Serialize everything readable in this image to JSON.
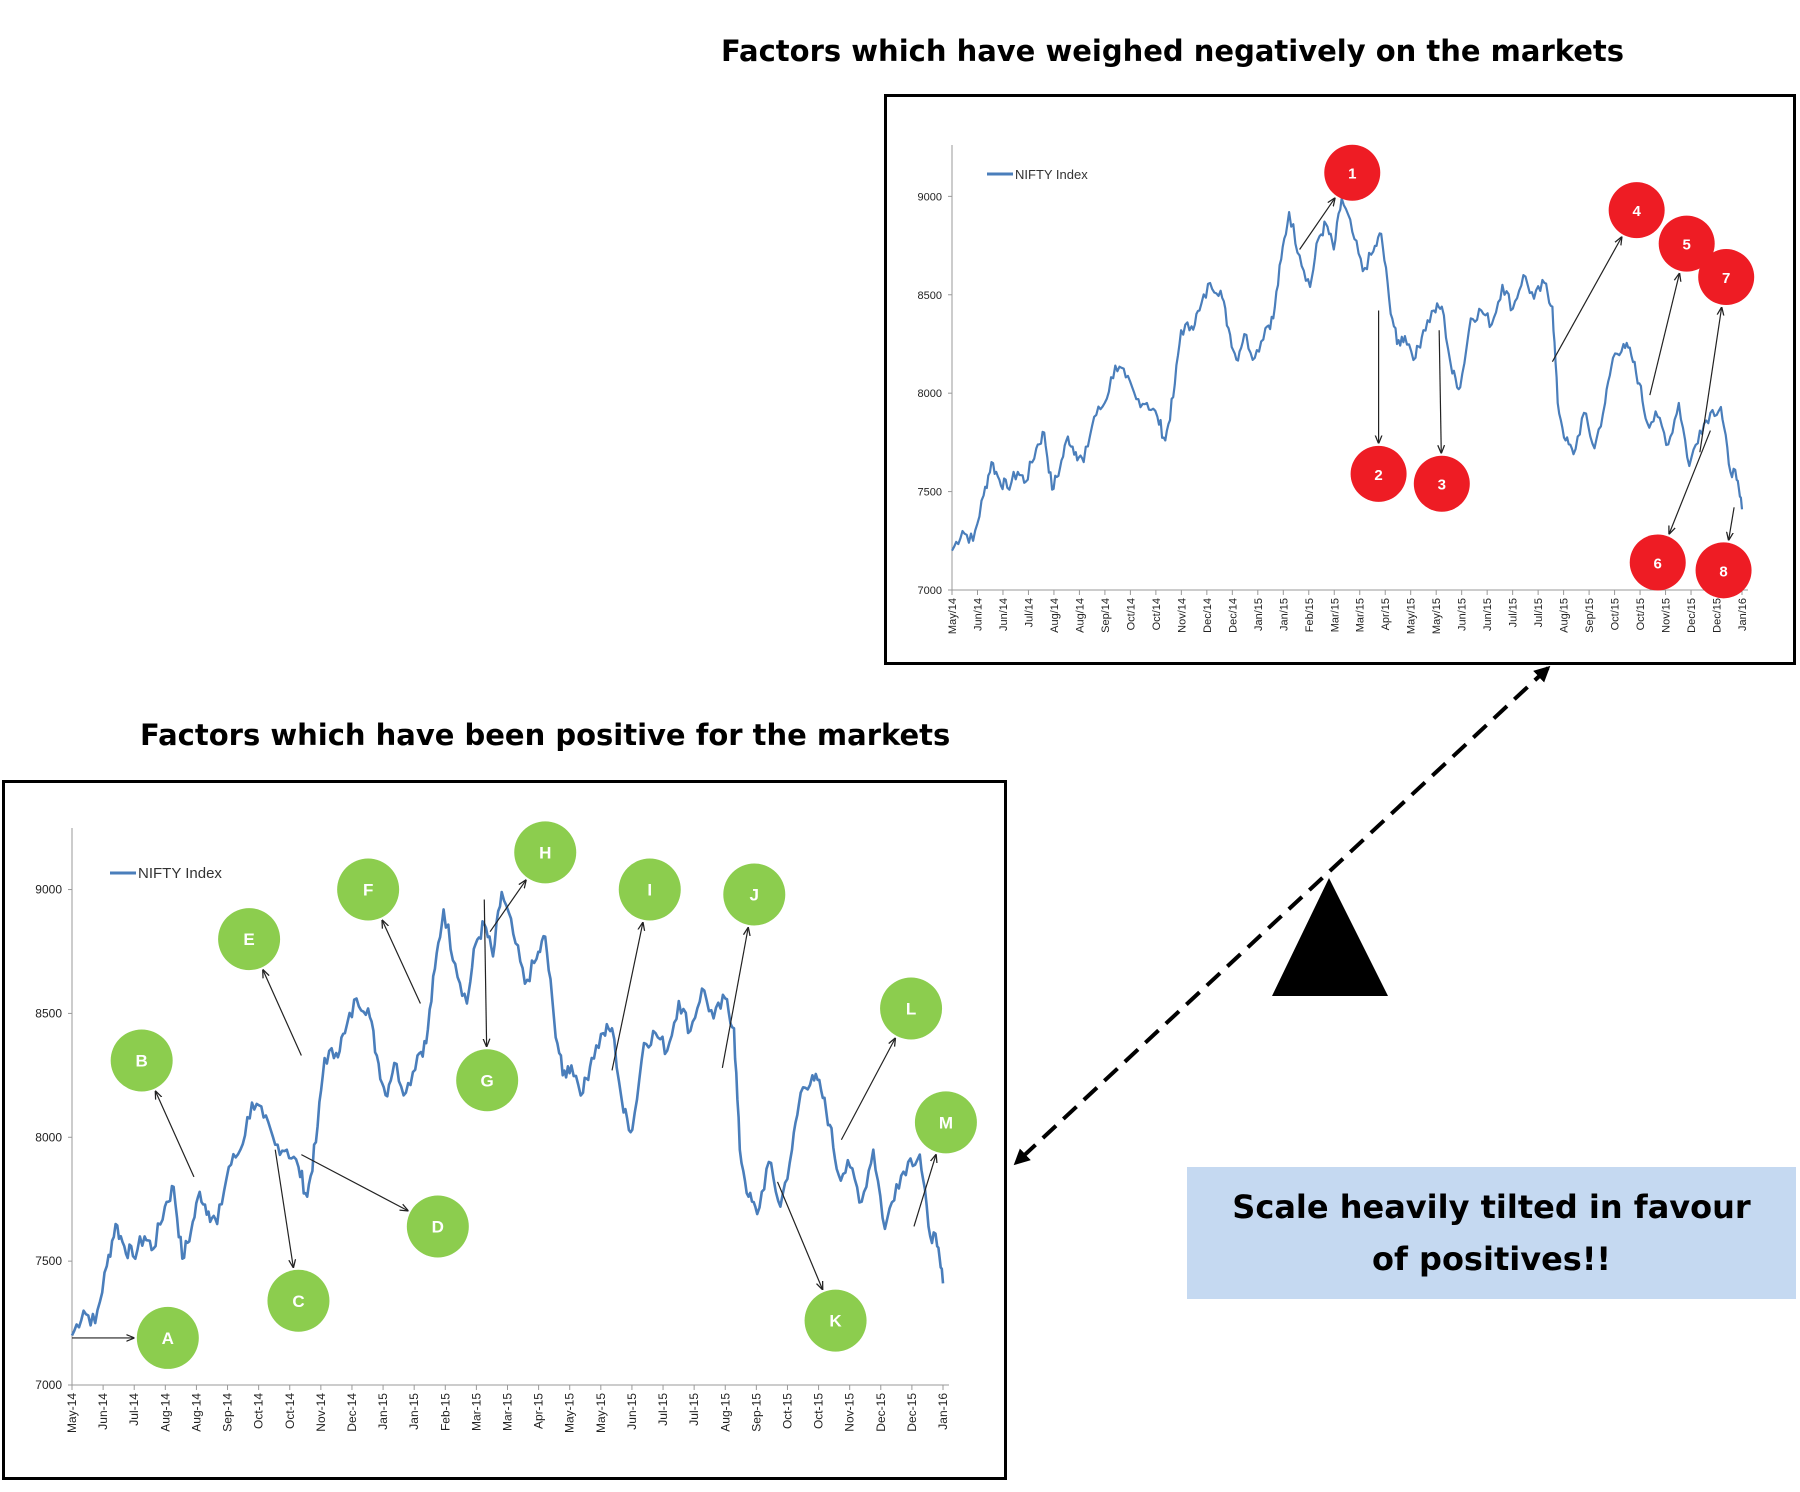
{
  "titles": {
    "negative": "Factors which have weighed negatively on the markets",
    "positive": "Factors which have been positive for the markets"
  },
  "callout": "Scale heavily tilted in favour of positives!!",
  "colors": {
    "line": "#4a7ebb",
    "negative_marker": "#ee1c24",
    "positive_marker": "#8ccd4e",
    "callout_bg": "#c5d9f1",
    "fulcrum": "#000000"
  },
  "chart_data": [
    {
      "type": "line",
      "title": "Factors which have weighed negatively on the markets",
      "legend": "NIFTY Index",
      "legend_position": "top-left",
      "grid": false,
      "ylim": [
        7000,
        9200
      ],
      "yticks": [
        7000,
        7500,
        8000,
        8500,
        9000
      ],
      "xlim": [
        0,
        30
      ],
      "xtick_labels": [
        "May/14",
        "Jun/14",
        "Jun/14",
        "Jul/14",
        "Aug/14",
        "Aug/14",
        "Sep/14",
        "Oct/14",
        "Oct/14",
        "Nov/14",
        "Dec/14",
        "Dec/14",
        "Jan/15",
        "Jan/15",
        "Feb/15",
        "Mar/15",
        "Mar/15",
        "Apr/15",
        "May/15",
        "May/15",
        "Jun/15",
        "Jun/15",
        "Jul/15",
        "Jul/15",
        "Aug/15",
        "Sep/15",
        "Oct/15",
        "Oct/15",
        "Nov/15",
        "Dec/15",
        "Dec/15",
        "Jan/16"
      ],
      "markers": [
        {
          "label": "1",
          "x": 15.2,
          "y": 9120,
          "arrow_from": [
            13.2,
            8730
          ]
        },
        {
          "label": "2",
          "x": 16.2,
          "y": 7590,
          "arrow_from": [
            16.2,
            8420
          ]
        },
        {
          "label": "3",
          "x": 18.6,
          "y": 7540,
          "arrow_from": [
            18.5,
            8320
          ]
        },
        {
          "label": "4",
          "x": 26.0,
          "y": 8930,
          "arrow_from": [
            22.8,
            8160
          ]
        },
        {
          "label": "5",
          "x": 27.9,
          "y": 8760,
          "arrow_from": [
            26.5,
            7990
          ]
        },
        {
          "label": "6",
          "x": 26.8,
          "y": 7140,
          "arrow_from": [
            28.8,
            7810
          ]
        },
        {
          "label": "7",
          "x": 29.4,
          "y": 8590,
          "arrow_from": [
            28.4,
            7700
          ]
        },
        {
          "label": "8",
          "x": 29.3,
          "y": 7100,
          "arrow_from": [
            29.7,
            7420
          ]
        }
      ]
    },
    {
      "type": "line",
      "title": "Factors which have been positive for the markets",
      "legend": "NIFTY Index",
      "legend_position": "top-left",
      "grid": false,
      "ylim": [
        7000,
        9200
      ],
      "yticks": [
        7000,
        7500,
        8000,
        8500,
        9000
      ],
      "xlim": [
        0,
        30
      ],
      "xtick_labels": [
        "May-14",
        "Jun-14",
        "Jul-14",
        "Aug-14",
        "Aug-14",
        "Sep-14",
        "Oct-14",
        "Oct-14",
        "Nov-14",
        "Dec-14",
        "Jan-15",
        "Jan-15",
        "Feb-15",
        "Mar-15",
        "Mar-15",
        "Apr-15",
        "May-15",
        "May-15",
        "Jun-15",
        "Jul-15",
        "Jul-15",
        "Aug-15",
        "Sep-15",
        "Oct-15",
        "Oct-15",
        "Nov-15",
        "Dec-15",
        "Dec-15",
        "Jan-16"
      ],
      "markers": [
        {
          "label": "A",
          "x": 3.3,
          "y": 7190,
          "arrow_from": [
            0.0,
            7190
          ]
        },
        {
          "label": "B",
          "x": 2.4,
          "y": 8310,
          "arrow_from": [
            4.2,
            7840
          ]
        },
        {
          "label": "C",
          "x": 7.8,
          "y": 7340,
          "arrow_from": [
            7.0,
            7950
          ]
        },
        {
          "label": "D",
          "x": 12.6,
          "y": 7640,
          "arrow_from": [
            7.9,
            7930
          ]
        },
        {
          "label": "E",
          "x": 6.1,
          "y": 8800,
          "arrow_from": [
            7.9,
            8330
          ]
        },
        {
          "label": "F",
          "x": 10.2,
          "y": 9000,
          "arrow_from": [
            12.0,
            8540
          ]
        },
        {
          "label": "G",
          "x": 14.3,
          "y": 8230,
          "arrow_from": [
            14.2,
            8960
          ]
        },
        {
          "label": "H",
          "x": 16.3,
          "y": 9150,
          "arrow_from": [
            14.4,
            8830
          ]
        },
        {
          "label": "I",
          "x": 19.9,
          "y": 9000,
          "arrow_from": [
            18.6,
            8270
          ]
        },
        {
          "label": "J",
          "x": 23.5,
          "y": 8980,
          "arrow_from": [
            22.4,
            8280
          ]
        },
        {
          "label": "K",
          "x": 26.3,
          "y": 7260,
          "arrow_from": [
            24.3,
            7820
          ]
        },
        {
          "label": "L",
          "x": 28.9,
          "y": 8520,
          "arrow_from": [
            26.5,
            7990
          ]
        },
        {
          "label": "M",
          "x": 30.1,
          "y": 8060,
          "arrow_from": [
            29.0,
            7640
          ]
        }
      ]
    }
  ]
}
